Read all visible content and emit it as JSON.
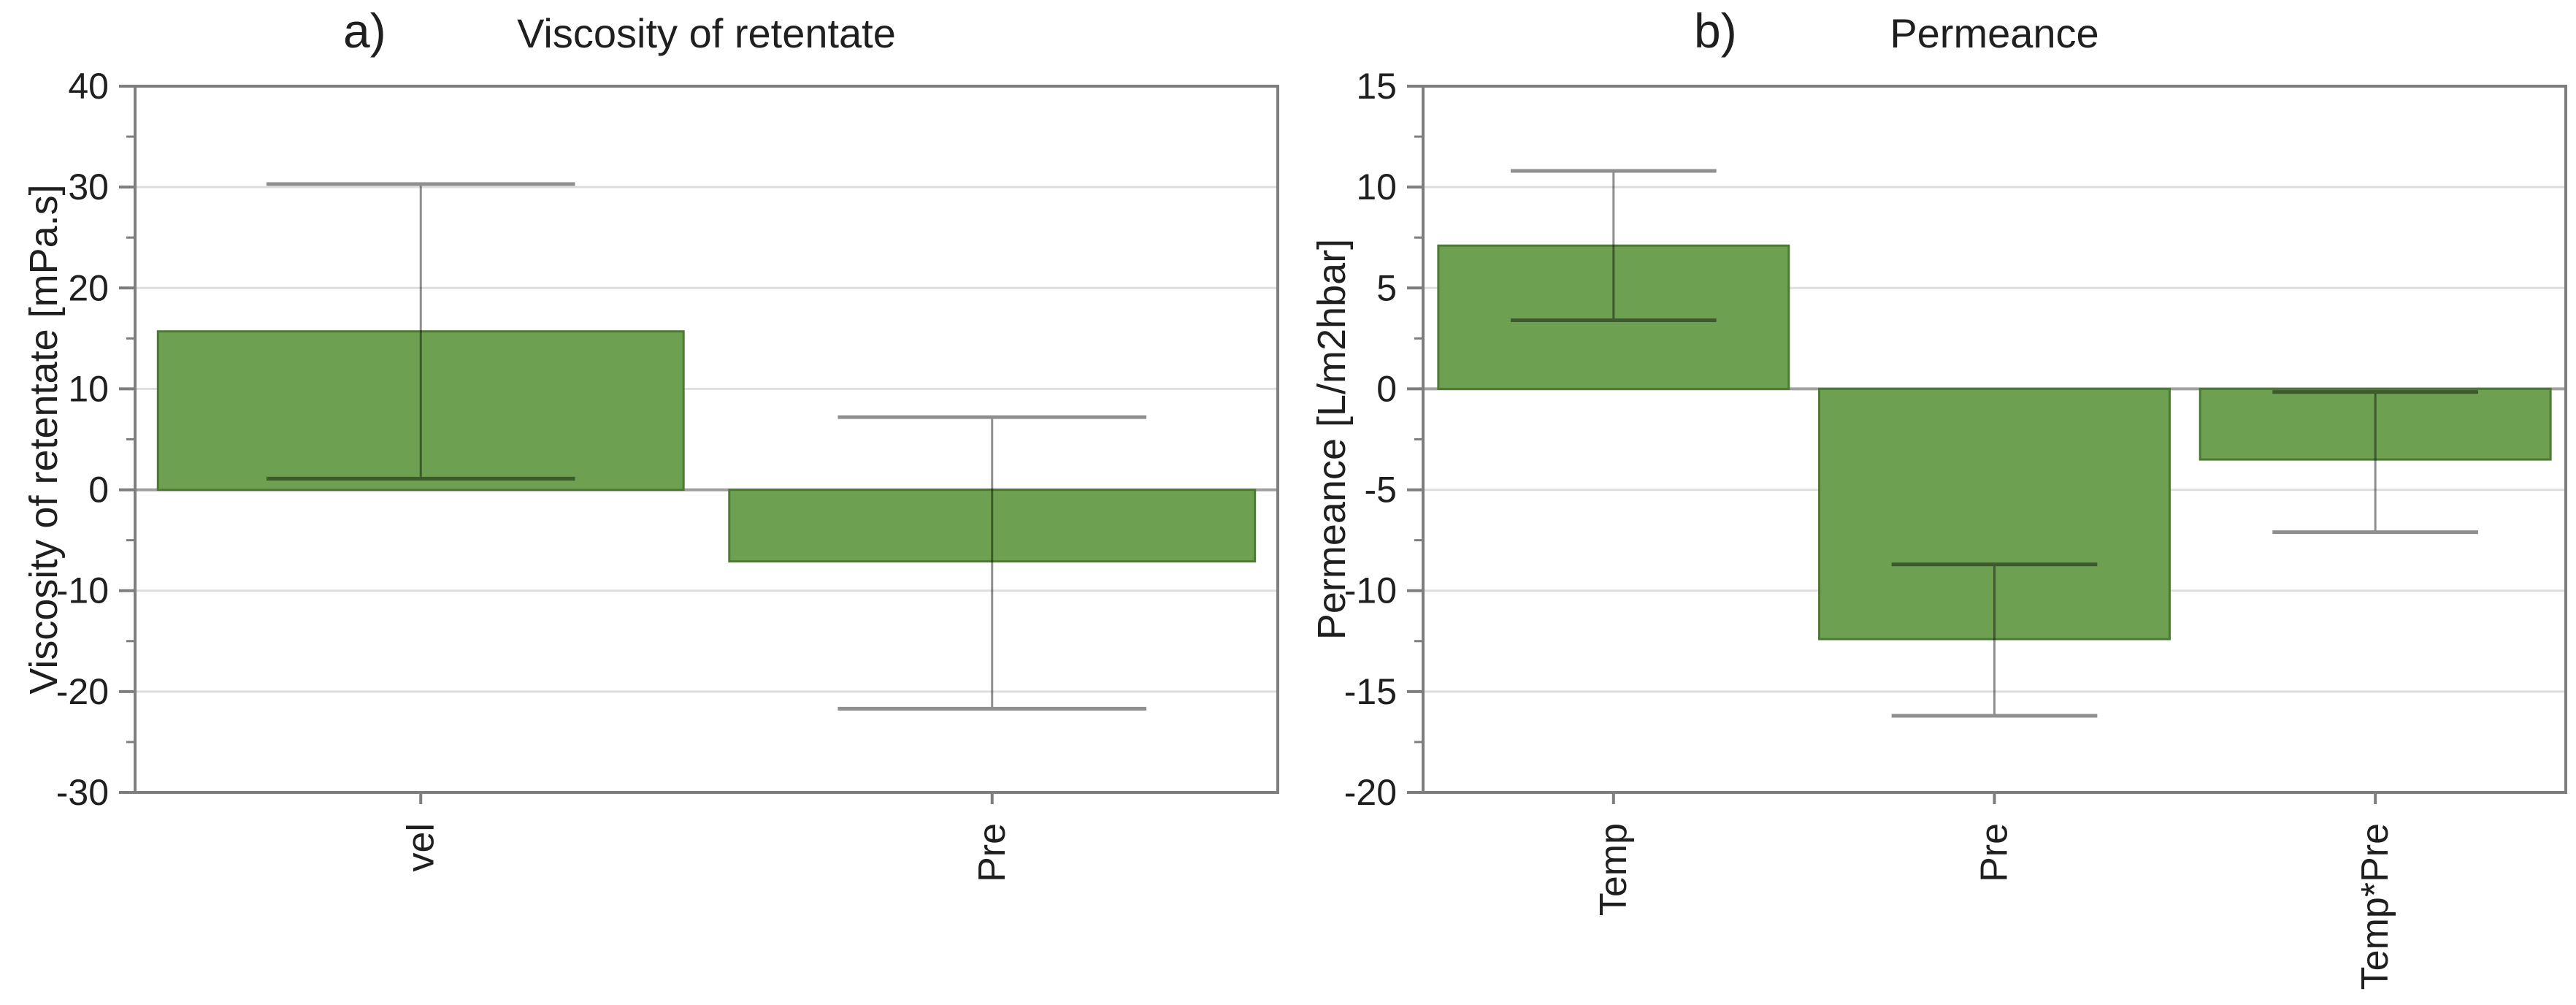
{
  "colors": {
    "background": "#FFFFFF",
    "bar_fill": "#6DA050",
    "bar_edge": "#4C7A31",
    "error_bar": "#8F8F8F",
    "grid": "#DEDEDE",
    "zero_line": "#A0A0A0",
    "frame": "#7E7E7E",
    "text": "#1F1F1F"
  },
  "chart_data": [
    {
      "type": "bar",
      "panel_label": "a)",
      "title": "Viscosity of retentate",
      "ylabel": "Viscosity of retentate [mPa.s]",
      "xlabel": "",
      "categories": [
        "vel",
        "Pre"
      ],
      "values": [
        15.7,
        -7.1
      ],
      "error_low": [
        1.1,
        -21.7
      ],
      "error_high": [
        30.3,
        7.2
      ],
      "ylim": [
        -30,
        40
      ],
      "yticks": [
        40,
        30,
        20,
        10,
        0,
        -10,
        -20,
        -30
      ],
      "yminor_step": 5,
      "grid": true,
      "legend": "none",
      "x_tick_label_rotation_deg": -90
    },
    {
      "type": "bar",
      "panel_label": "b)",
      "title": "Permeance",
      "ylabel": "Permeance [L/m2hbar]",
      "xlabel": "",
      "categories": [
        "Temp",
        "Pre",
        "Temp*Pre"
      ],
      "values": [
        7.1,
        -12.4,
        -3.5
      ],
      "error_low": [
        3.4,
        -16.2,
        -7.1
      ],
      "error_high": [
        10.8,
        -8.7,
        -0.15
      ],
      "ylim": [
        -20,
        15
      ],
      "yticks": [
        15,
        10,
        5,
        0,
        -5,
        -10,
        -15,
        -20
      ],
      "yminor_step": 2.5,
      "grid": true,
      "legend": "none",
      "x_tick_label_rotation_deg": -90
    }
  ]
}
